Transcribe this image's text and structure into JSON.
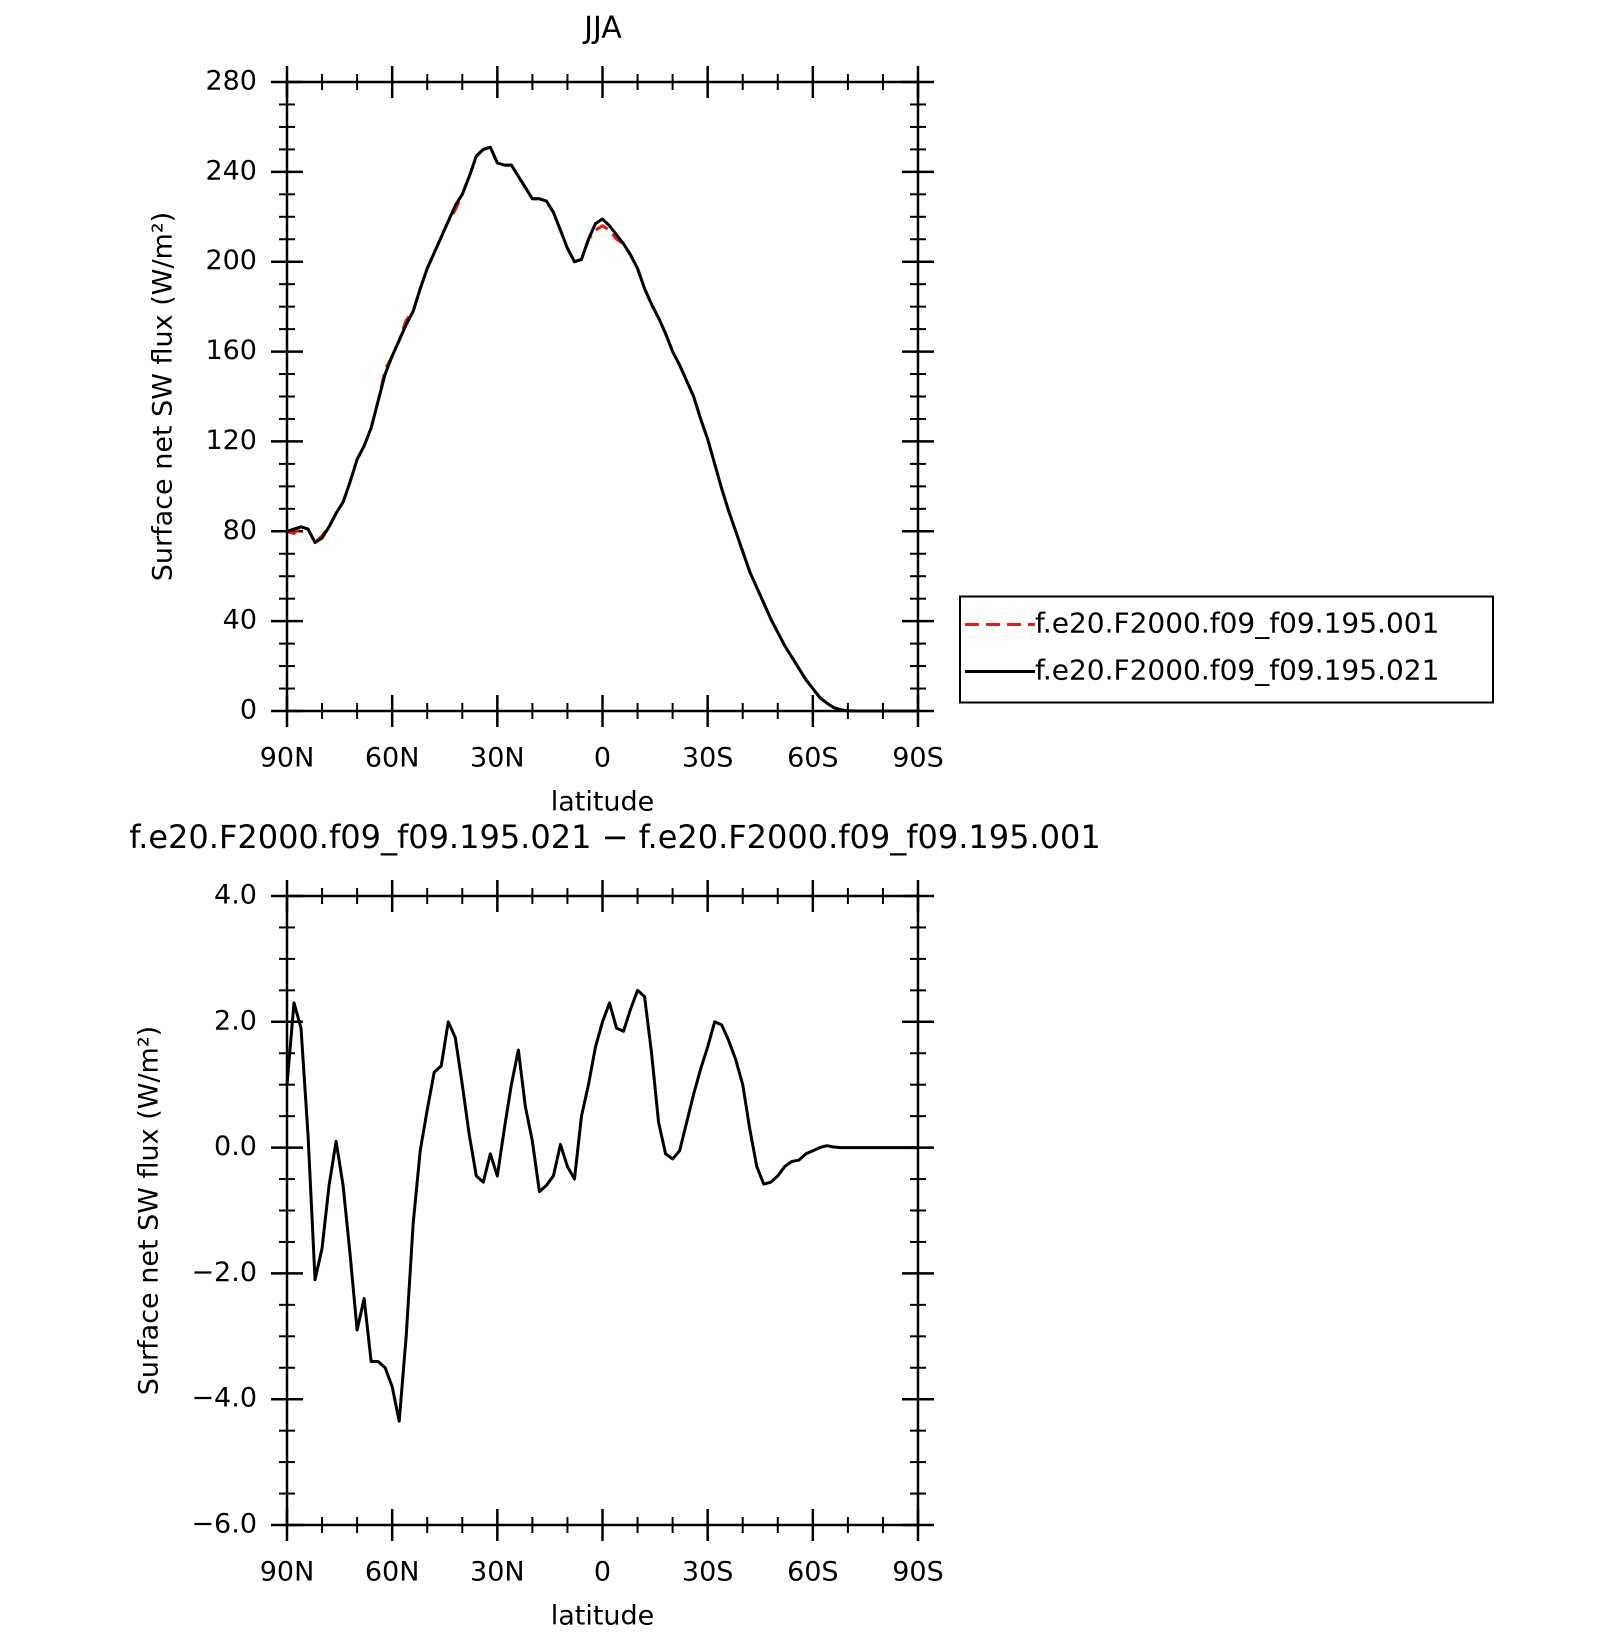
{
  "chart_data": [
    {
      "type": "line",
      "title": "JJA",
      "ylabel": "Surface net SW flux (W/m²)",
      "xlabel": "latitude",
      "x": [
        90,
        88,
        86,
        84,
        82,
        80,
        78,
        76,
        74,
        72,
        70,
        68,
        66,
        64,
        62,
        60,
        58,
        56,
        54,
        52,
        50,
        48,
        46,
        44,
        42,
        40,
        38,
        36,
        34,
        32,
        30,
        28,
        26,
        24,
        22,
        20,
        18,
        16,
        14,
        12,
        10,
        8,
        6,
        4,
        2,
        0,
        -2,
        -4,
        -6,
        -8,
        -10,
        -12,
        -14,
        -16,
        -18,
        -20,
        -22,
        -24,
        -26,
        -28,
        -30,
        -32,
        -34,
        -36,
        -38,
        -40,
        -42,
        -44,
        -46,
        -48,
        -50,
        -52,
        -54,
        -56,
        -58,
        -60,
        -62,
        -64,
        -66,
        -68,
        -70,
        -72,
        -74,
        -76,
        -78,
        -80,
        -82,
        -84,
        -86,
        -88,
        -90
      ],
      "xlim": [
        90,
        -90
      ],
      "xticks": [
        {
          "value": 90,
          "label": "90N"
        },
        {
          "value": 60,
          "label": "60N"
        },
        {
          "value": 30,
          "label": "30N"
        },
        0,
        {
          "value": -30,
          "label": "30S"
        },
        {
          "value": -60,
          "label": "60S"
        },
        {
          "value": -90,
          "label": "90S"
        }
      ],
      "ylim": [
        0,
        280
      ],
      "yticks": [
        0,
        40,
        80,
        120,
        160,
        200,
        240,
        280
      ],
      "legend": "right",
      "series": [
        {
          "name": "f.e20.F2000.f09_f09.195.001",
          "color": "#e41a1c",
          "style": "dashed",
          "values": [
            80,
            79,
            82,
            81,
            75,
            78,
            82,
            88,
            93,
            102,
            112,
            118,
            126,
            138,
            152,
            158,
            165,
            174,
            178,
            188,
            197,
            204,
            211,
            218,
            223,
            230,
            238,
            247,
            250,
            251,
            244,
            243,
            243,
            238,
            233,
            228,
            228,
            227,
            222,
            214,
            206,
            200,
            201,
            210,
            214,
            216,
            214,
            210,
            208,
            203,
            197,
            188,
            181,
            175,
            168,
            160,
            154,
            147,
            140,
            130,
            121,
            110,
            99,
            89,
            80,
            71,
            62,
            55,
            48,
            41,
            35,
            29,
            24,
            19,
            14,
            10,
            6,
            3.5,
            1.5,
            0.5,
            0.1,
            0,
            0,
            0,
            0,
            0,
            0,
            0,
            0,
            0,
            0
          ]
        },
        {
          "name": "f.e20.F2000.f09_f09.195.021",
          "color": "#000000",
          "style": "solid",
          "values": [
            80,
            81,
            82,
            81,
            75,
            77,
            82,
            88,
            93,
            102,
            112,
            118,
            126,
            138,
            150,
            158,
            165,
            172,
            178,
            188,
            197,
            204,
            211,
            218,
            225,
            230,
            238,
            247,
            250,
            251,
            244,
            243,
            243,
            238,
            233,
            228,
            228,
            227,
            222,
            214,
            206,
            200,
            201,
            210,
            217,
            219,
            216,
            212,
            208,
            203,
            197,
            188,
            181,
            175,
            168,
            160,
            154,
            147,
            140,
            130,
            121,
            110,
            99,
            89,
            80,
            71,
            62,
            55,
            48,
            41,
            35,
            29,
            24,
            19,
            14,
            10,
            6,
            3.5,
            1.5,
            0.5,
            0.1,
            0,
            0,
            0,
            0,
            0,
            0,
            0,
            0,
            0,
            0
          ]
        }
      ]
    },
    {
      "type": "line",
      "title": "f.e20.F2000.f09_f09.195.021 − f.e20.F2000.f09_f09.195.001",
      "ylabel": "Surface net SW flux (W/m²)",
      "xlabel": "latitude",
      "x": [
        90,
        88,
        86,
        84,
        82,
        80,
        78,
        76,
        74,
        72,
        70,
        68,
        66,
        64,
        62,
        60,
        58,
        56,
        54,
        52,
        50,
        48,
        46,
        44,
        42,
        40,
        38,
        36,
        34,
        32,
        30,
        28,
        26,
        24,
        22,
        20,
        18,
        16,
        14,
        12,
        10,
        8,
        6,
        4,
        2,
        0,
        -2,
        -4,
        -6,
        -8,
        -10,
        -12,
        -14,
        -16,
        -18,
        -20,
        -22,
        -24,
        -26,
        -28,
        -30,
        -32,
        -34,
        -36,
        -38,
        -40,
        -42,
        -44,
        -46,
        -48,
        -50,
        -52,
        -54,
        -56,
        -58,
        -60,
        -62,
        -64,
        -66,
        -68,
        -70,
        -72,
        -74,
        -76,
        -78,
        -80,
        -82,
        -84,
        -86,
        -88,
        -90
      ],
      "xlim": [
        90,
        -90
      ],
      "xticks": [
        {
          "value": 90,
          "label": "90N"
        },
        {
          "value": 60,
          "label": "60N"
        },
        {
          "value": 30,
          "label": "30N"
        },
        0,
        {
          "value": -30,
          "label": "30S"
        },
        {
          "value": -60,
          "label": "60S"
        },
        {
          "value": -90,
          "label": "90S"
        }
      ],
      "ylim": [
        -6,
        4
      ],
      "yticks": [
        {
          "value": -6,
          "label": "−6.0"
        },
        {
          "value": -4,
          "label": "−4.0"
        },
        {
          "value": -2,
          "label": "−2.0"
        },
        {
          "value": 0,
          "label": "0.0"
        },
        {
          "value": 2,
          "label": "2.0"
        },
        {
          "value": 4,
          "label": "4.0"
        }
      ],
      "series": [
        {
          "color": "#000000",
          "style": "solid",
          "values": [
            1.0,
            2.3,
            1.9,
            0.2,
            -2.1,
            -1.6,
            -0.6,
            0.1,
            -0.6,
            -1.7,
            -2.9,
            -2.4,
            -3.4,
            -3.4,
            -3.5,
            -3.8,
            -4.35,
            -3.0,
            -1.2,
            -0.05,
            0.6,
            1.2,
            1.3,
            2.0,
            1.75,
            1.0,
            0.2,
            -0.45,
            -0.55,
            -0.1,
            -0.45,
            0.3,
            1.0,
            1.55,
            0.65,
            0.1,
            -0.7,
            -0.6,
            -0.45,
            0.05,
            -0.3,
            -0.5,
            0.5,
            1.0,
            1.6,
            2.0,
            2.3,
            1.9,
            1.85,
            2.2,
            2.5,
            2.4,
            1.5,
            0.4,
            -0.1,
            -0.18,
            -0.05,
            0.4,
            0.85,
            1.25,
            1.6,
            2.0,
            1.95,
            1.7,
            1.4,
            1.0,
            0.3,
            -0.3,
            -0.58,
            -0.55,
            -0.45,
            -0.3,
            -0.22,
            -0.2,
            -0.1,
            -0.05,
            0,
            0.03,
            0.01,
            0,
            0,
            0,
            0,
            0,
            0,
            0,
            0,
            0,
            0,
            0,
            0
          ]
        }
      ]
    }
  ]
}
